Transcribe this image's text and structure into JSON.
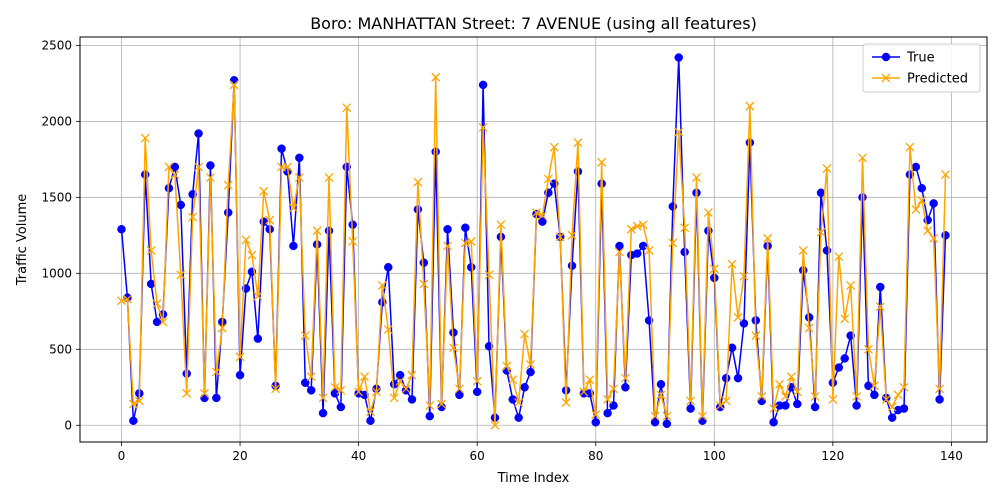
{
  "chart_data": {
    "type": "line",
    "title": "Boro: MANHATTAN Street: 7 AVENUE (using all features)",
    "xlabel": "Time Index",
    "ylabel": "Traffic Volume",
    "xlim": [
      -7,
      146
    ],
    "ylim": [
      -110,
      2555
    ],
    "xticks": [
      0,
      20,
      40,
      60,
      80,
      100,
      120,
      140
    ],
    "yticks": [
      0,
      500,
      1000,
      1500,
      2000,
      2500
    ],
    "grid": true,
    "legend_position": "top-right",
    "series": [
      {
        "name": "True",
        "color": "#0000ff",
        "marker": "circle",
        "values": [
          1290,
          840,
          30,
          210,
          1650,
          930,
          680,
          730,
          1560,
          1700,
          1450,
          340,
          1520,
          1920,
          180,
          1710,
          180,
          680,
          1400,
          2270,
          330,
          900,
          1010,
          570,
          1340,
          1290,
          260,
          1820,
          1670,
          1180,
          1760,
          280,
          230,
          1190,
          80,
          1280,
          210,
          120,
          1700,
          1320,
          210,
          200,
          30,
          240,
          810,
          1040,
          270,
          330,
          230,
          170,
          1420,
          1070,
          60,
          1800,
          120,
          1290,
          610,
          200,
          1300,
          1040,
          220,
          2240,
          520,
          50,
          1240,
          360,
          170,
          50,
          250,
          350,
          1390,
          1340,
          1530,
          1590,
          1240,
          230,
          1050,
          1670,
          210,
          210,
          20,
          1590,
          80,
          130,
          1180,
          250,
          1120,
          1130,
          1180,
          690,
          20,
          270,
          10,
          1440,
          2420,
          1140,
          110,
          1530,
          30,
          1280,
          970,
          120,
          310,
          510,
          310,
          670,
          1860,
          690,
          160,
          1180,
          20,
          130,
          130,
          250,
          140,
          1020,
          710,
          120,
          1530,
          1150,
          280,
          380,
          440,
          590,
          130,
          1500,
          260,
          200,
          910,
          180,
          50,
          100,
          110,
          1650,
          1700,
          1560,
          1350,
          1460,
          170,
          1250
        ]
      },
      {
        "name": "Predicted",
        "color": "#ffa500",
        "marker": "x",
        "values": [
          820,
          830,
          140,
          160,
          1890,
          1150,
          800,
          680,
          1700,
          1650,
          990,
          210,
          1370,
          1700,
          210,
          1630,
          350,
          640,
          1580,
          2240,
          450,
          1220,
          1120,
          850,
          1540,
          1350,
          240,
          1700,
          1700,
          1430,
          1630,
          590,
          320,
          1280,
          180,
          1630,
          250,
          230,
          2090,
          1210,
          220,
          320,
          90,
          220,
          920,
          630,
          180,
          290,
          240,
          330,
          1600,
          930,
          130,
          2290,
          140,
          1180,
          510,
          240,
          1200,
          1210,
          290,
          1960,
          990,
          0,
          1320,
          390,
          300,
          150,
          600,
          400,
          1400,
          1380,
          1620,
          1830,
          1240,
          150,
          1250,
          1860,
          220,
          300,
          70,
          1730,
          170,
          240,
          1140,
          310,
          1290,
          1310,
          1320,
          1150,
          60,
          200,
          60,
          1200,
          1930,
          1300,
          160,
          1630,
          60,
          1400,
          1030,
          130,
          160,
          1060,
          710,
          980,
          2100,
          590,
          190,
          1230,
          110,
          270,
          190,
          320,
          220,
          1150,
          640,
          190,
          1270,
          1690,
          170,
          1110,
          700,
          920,
          190,
          1760,
          500,
          260,
          780,
          170,
          120,
          200,
          250,
          1830,
          1420,
          1480,
          1280,
          1230,
          240,
          1650
        ]
      }
    ]
  }
}
